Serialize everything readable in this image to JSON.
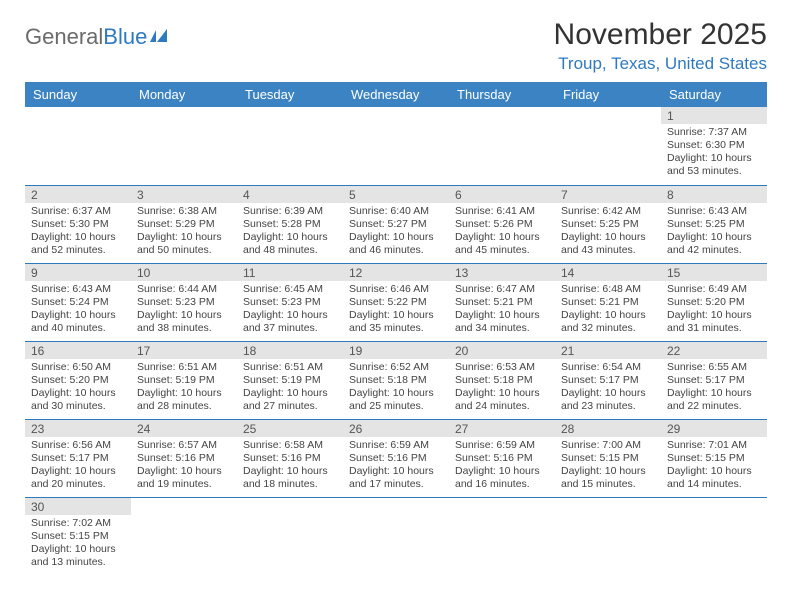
{
  "logo": {
    "part1": "General",
    "part2": "Blue"
  },
  "title": "November 2025",
  "location": "Troup, Texas, United States",
  "colors": {
    "header_bg": "#3c83c3",
    "accent": "#2f7abf",
    "daynum_bg": "#e4e4e4",
    "text": "#333333",
    "logo_gray": "#6b6b6b"
  },
  "weekdays": [
    "Sunday",
    "Monday",
    "Tuesday",
    "Wednesday",
    "Thursday",
    "Friday",
    "Saturday"
  ],
  "weeks": [
    [
      null,
      null,
      null,
      null,
      null,
      null,
      {
        "n": "1",
        "sr": "Sunrise: 7:37 AM",
        "ss": "Sunset: 6:30 PM",
        "d1": "Daylight: 10 hours",
        "d2": "and 53 minutes."
      }
    ],
    [
      {
        "n": "2",
        "sr": "Sunrise: 6:37 AM",
        "ss": "Sunset: 5:30 PM",
        "d1": "Daylight: 10 hours",
        "d2": "and 52 minutes."
      },
      {
        "n": "3",
        "sr": "Sunrise: 6:38 AM",
        "ss": "Sunset: 5:29 PM",
        "d1": "Daylight: 10 hours",
        "d2": "and 50 minutes."
      },
      {
        "n": "4",
        "sr": "Sunrise: 6:39 AM",
        "ss": "Sunset: 5:28 PM",
        "d1": "Daylight: 10 hours",
        "d2": "and 48 minutes."
      },
      {
        "n": "5",
        "sr": "Sunrise: 6:40 AM",
        "ss": "Sunset: 5:27 PM",
        "d1": "Daylight: 10 hours",
        "d2": "and 46 minutes."
      },
      {
        "n": "6",
        "sr": "Sunrise: 6:41 AM",
        "ss": "Sunset: 5:26 PM",
        "d1": "Daylight: 10 hours",
        "d2": "and 45 minutes."
      },
      {
        "n": "7",
        "sr": "Sunrise: 6:42 AM",
        "ss": "Sunset: 5:25 PM",
        "d1": "Daylight: 10 hours",
        "d2": "and 43 minutes."
      },
      {
        "n": "8",
        "sr": "Sunrise: 6:43 AM",
        "ss": "Sunset: 5:25 PM",
        "d1": "Daylight: 10 hours",
        "d2": "and 42 minutes."
      }
    ],
    [
      {
        "n": "9",
        "sr": "Sunrise: 6:43 AM",
        "ss": "Sunset: 5:24 PM",
        "d1": "Daylight: 10 hours",
        "d2": "and 40 minutes."
      },
      {
        "n": "10",
        "sr": "Sunrise: 6:44 AM",
        "ss": "Sunset: 5:23 PM",
        "d1": "Daylight: 10 hours",
        "d2": "and 38 minutes."
      },
      {
        "n": "11",
        "sr": "Sunrise: 6:45 AM",
        "ss": "Sunset: 5:23 PM",
        "d1": "Daylight: 10 hours",
        "d2": "and 37 minutes."
      },
      {
        "n": "12",
        "sr": "Sunrise: 6:46 AM",
        "ss": "Sunset: 5:22 PM",
        "d1": "Daylight: 10 hours",
        "d2": "and 35 minutes."
      },
      {
        "n": "13",
        "sr": "Sunrise: 6:47 AM",
        "ss": "Sunset: 5:21 PM",
        "d1": "Daylight: 10 hours",
        "d2": "and 34 minutes."
      },
      {
        "n": "14",
        "sr": "Sunrise: 6:48 AM",
        "ss": "Sunset: 5:21 PM",
        "d1": "Daylight: 10 hours",
        "d2": "and 32 minutes."
      },
      {
        "n": "15",
        "sr": "Sunrise: 6:49 AM",
        "ss": "Sunset: 5:20 PM",
        "d1": "Daylight: 10 hours",
        "d2": "and 31 minutes."
      }
    ],
    [
      {
        "n": "16",
        "sr": "Sunrise: 6:50 AM",
        "ss": "Sunset: 5:20 PM",
        "d1": "Daylight: 10 hours",
        "d2": "and 30 minutes."
      },
      {
        "n": "17",
        "sr": "Sunrise: 6:51 AM",
        "ss": "Sunset: 5:19 PM",
        "d1": "Daylight: 10 hours",
        "d2": "and 28 minutes."
      },
      {
        "n": "18",
        "sr": "Sunrise: 6:51 AM",
        "ss": "Sunset: 5:19 PM",
        "d1": "Daylight: 10 hours",
        "d2": "and 27 minutes."
      },
      {
        "n": "19",
        "sr": "Sunrise: 6:52 AM",
        "ss": "Sunset: 5:18 PM",
        "d1": "Daylight: 10 hours",
        "d2": "and 25 minutes."
      },
      {
        "n": "20",
        "sr": "Sunrise: 6:53 AM",
        "ss": "Sunset: 5:18 PM",
        "d1": "Daylight: 10 hours",
        "d2": "and 24 minutes."
      },
      {
        "n": "21",
        "sr": "Sunrise: 6:54 AM",
        "ss": "Sunset: 5:17 PM",
        "d1": "Daylight: 10 hours",
        "d2": "and 23 minutes."
      },
      {
        "n": "22",
        "sr": "Sunrise: 6:55 AM",
        "ss": "Sunset: 5:17 PM",
        "d1": "Daylight: 10 hours",
        "d2": "and 22 minutes."
      }
    ],
    [
      {
        "n": "23",
        "sr": "Sunrise: 6:56 AM",
        "ss": "Sunset: 5:17 PM",
        "d1": "Daylight: 10 hours",
        "d2": "and 20 minutes."
      },
      {
        "n": "24",
        "sr": "Sunrise: 6:57 AM",
        "ss": "Sunset: 5:16 PM",
        "d1": "Daylight: 10 hours",
        "d2": "and 19 minutes."
      },
      {
        "n": "25",
        "sr": "Sunrise: 6:58 AM",
        "ss": "Sunset: 5:16 PM",
        "d1": "Daylight: 10 hours",
        "d2": "and 18 minutes."
      },
      {
        "n": "26",
        "sr": "Sunrise: 6:59 AM",
        "ss": "Sunset: 5:16 PM",
        "d1": "Daylight: 10 hours",
        "d2": "and 17 minutes."
      },
      {
        "n": "27",
        "sr": "Sunrise: 6:59 AM",
        "ss": "Sunset: 5:16 PM",
        "d1": "Daylight: 10 hours",
        "d2": "and 16 minutes."
      },
      {
        "n": "28",
        "sr": "Sunrise: 7:00 AM",
        "ss": "Sunset: 5:15 PM",
        "d1": "Daylight: 10 hours",
        "d2": "and 15 minutes."
      },
      {
        "n": "29",
        "sr": "Sunrise: 7:01 AM",
        "ss": "Sunset: 5:15 PM",
        "d1": "Daylight: 10 hours",
        "d2": "and 14 minutes."
      }
    ],
    [
      {
        "n": "30",
        "sr": "Sunrise: 7:02 AM",
        "ss": "Sunset: 5:15 PM",
        "d1": "Daylight: 10 hours",
        "d2": "and 13 minutes."
      },
      null,
      null,
      null,
      null,
      null,
      null
    ]
  ]
}
